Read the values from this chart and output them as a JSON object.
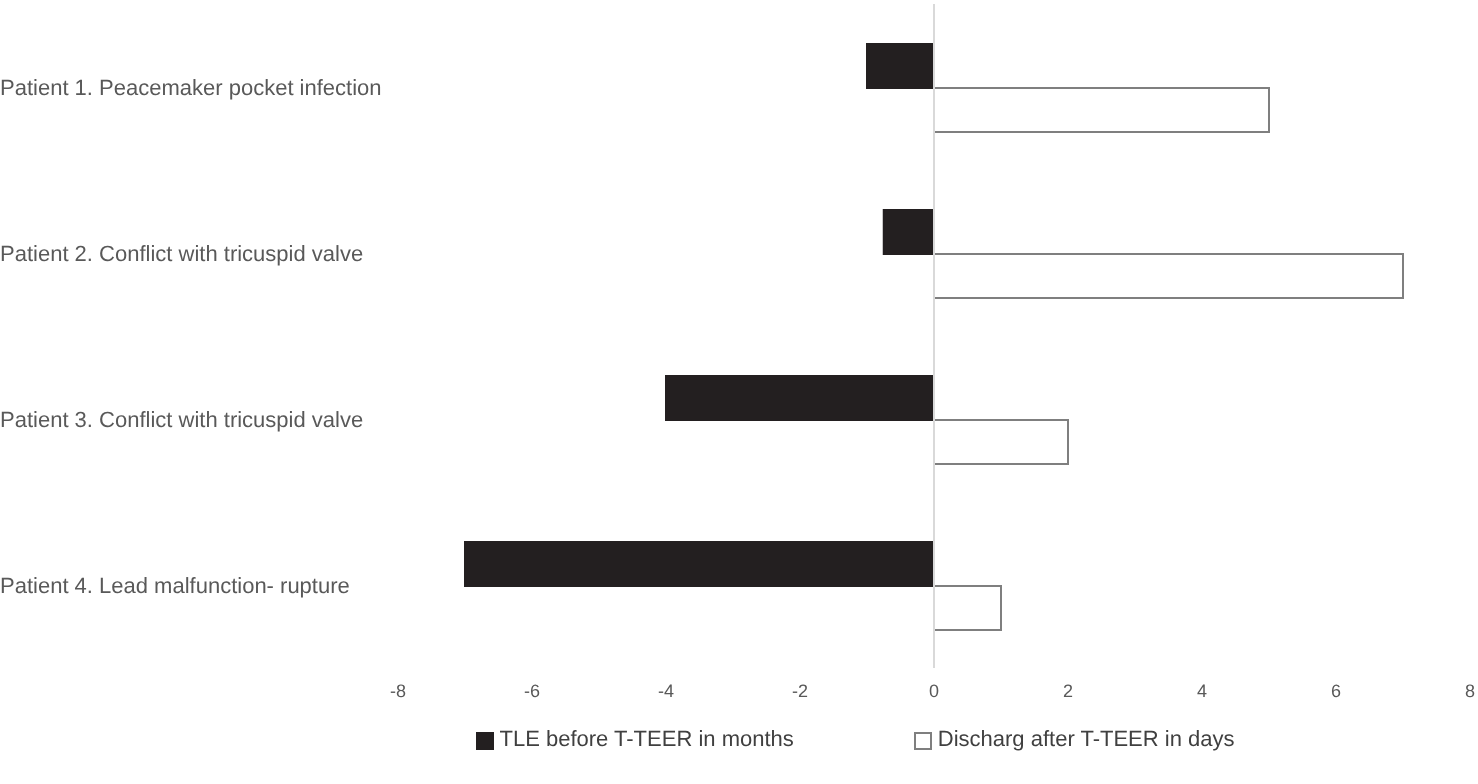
{
  "chart_data": {
    "type": "bar",
    "orientation": "horizontal",
    "categories": [
      "Patient 1. Peacemaker pocket infection",
      "Patient 2. Conflict with tricuspid valve",
      "Patient 3. Conflict with tricuspid valve",
      "Patient 4. Lead malfunction- rupture"
    ],
    "series": [
      {
        "name": "TLE before T-TEER in months",
        "color": "#231f20",
        "values": [
          -1,
          -0.75,
          -4,
          -7
        ]
      },
      {
        "name": "Discharg after T-TEER in days",
        "color": "#ffffff",
        "values": [
          5,
          7,
          2,
          1
        ]
      }
    ],
    "xlim": [
      -8,
      8
    ],
    "xticks": [
      -8,
      -6,
      -4,
      -2,
      0,
      2,
      4,
      6,
      8
    ],
    "legend": "bottom"
  }
}
